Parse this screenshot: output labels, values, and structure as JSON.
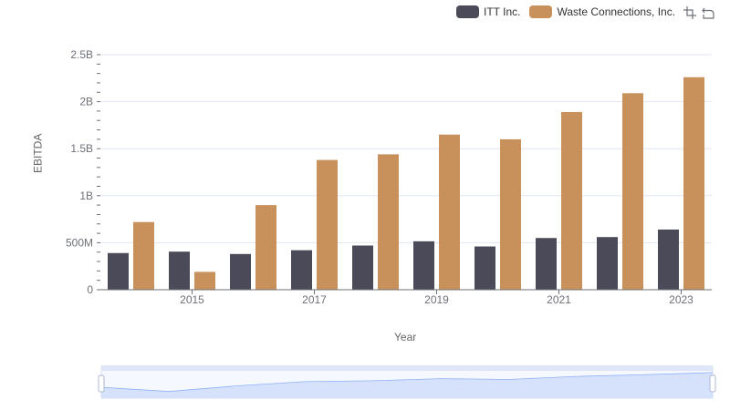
{
  "chart_data": {
    "type": "bar",
    "x": [
      2014,
      2015,
      2016,
      2017,
      2018,
      2019,
      2020,
      2021,
      2022,
      2023
    ],
    "xticks": [
      "2015",
      "2017",
      "2019",
      "2021",
      "2023"
    ],
    "series": [
      {
        "name": "ITT Inc.",
        "color": "#4a4a58",
        "values": [
          390000000,
          405000000,
          380000000,
          420000000,
          470000000,
          515000000,
          460000000,
          550000000,
          560000000,
          640000000
        ]
      },
      {
        "name": "Waste Connections, Inc.",
        "color": "#c8915b",
        "values": [
          720000000,
          190000000,
          900000000,
          1380000000,
          1440000000,
          1650000000,
          1600000000,
          1890000000,
          2090000000,
          2260000000
        ]
      }
    ],
    "yticks": [
      "0",
      "500M",
      "1B",
      "1.5B",
      "2B",
      "2.5B"
    ],
    "ylim": [
      0,
      2500000000
    ],
    "xlabel": "Year",
    "ylabel": "EBITDA",
    "grid": true,
    "legend": "top-right"
  },
  "colors": {
    "grid": "#e0e6f1",
    "axis": "#6e7079",
    "zoom_fill": "#d6e2fb",
    "zoom_border": "#acb8d1"
  },
  "icons": [
    "zoom-icon",
    "restore-icon"
  ]
}
